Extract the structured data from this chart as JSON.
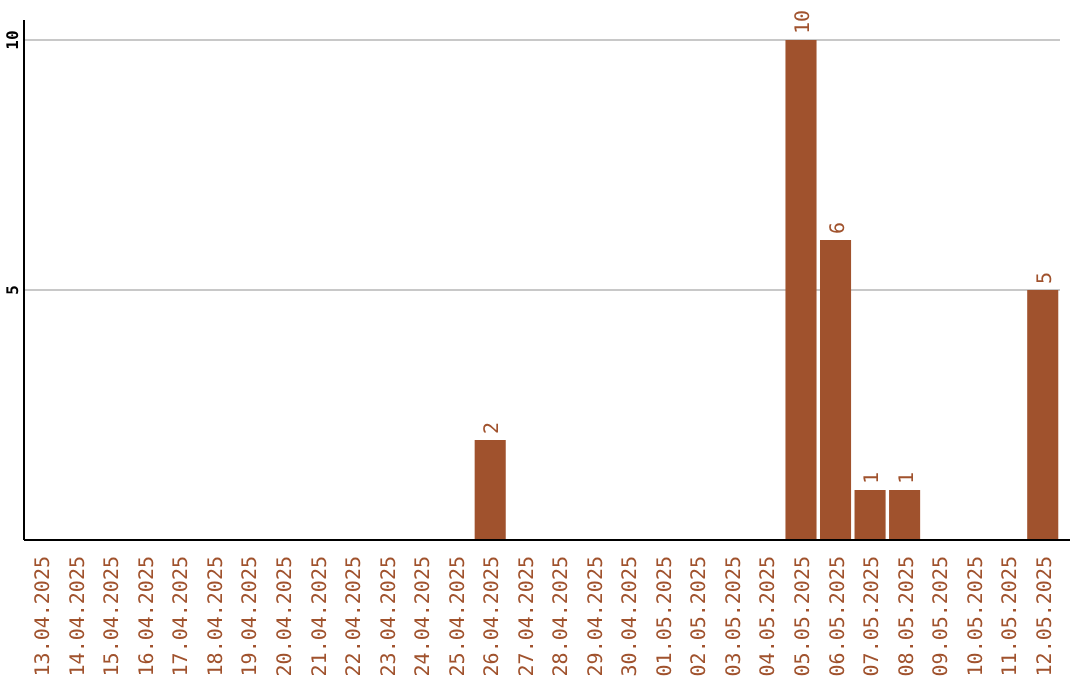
{
  "chart_data": {
    "type": "bar",
    "categories": [
      "13.04.2025",
      "14.04.2025",
      "15.04.2025",
      "16.04.2025",
      "17.04.2025",
      "18.04.2025",
      "19.04.2025",
      "20.04.2025",
      "21.04.2025",
      "22.04.2025",
      "23.04.2025",
      "24.04.2025",
      "25.04.2025",
      "26.04.2025",
      "27.04.2025",
      "28.04.2025",
      "29.04.2025",
      "30.04.2025",
      "01.05.2025",
      "02.05.2025",
      "03.05.2025",
      "04.05.2025",
      "05.05.2025",
      "06.05.2025",
      "07.05.2025",
      "08.05.2025",
      "09.05.2025",
      "10.05.2025",
      "11.05.2025",
      "12.05.2025"
    ],
    "values": [
      0,
      0,
      0,
      0,
      0,
      0,
      0,
      0,
      0,
      0,
      0,
      0,
      0,
      2,
      0,
      0,
      0,
      0,
      0,
      0,
      0,
      0,
      10,
      6,
      1,
      1,
      0,
      0,
      0,
      5
    ],
    "value_labels": [
      null,
      null,
      null,
      null,
      null,
      null,
      null,
      null,
      null,
      null,
      null,
      null,
      null,
      "2",
      null,
      null,
      null,
      null,
      null,
      null,
      null,
      null,
      "10",
      "6",
      "1",
      "1",
      null,
      null,
      null,
      "5"
    ],
    "color": "#a0522d",
    "ylim": [
      0,
      10.4
    ],
    "yticks": [
      5,
      10
    ],
    "grid": "y"
  }
}
